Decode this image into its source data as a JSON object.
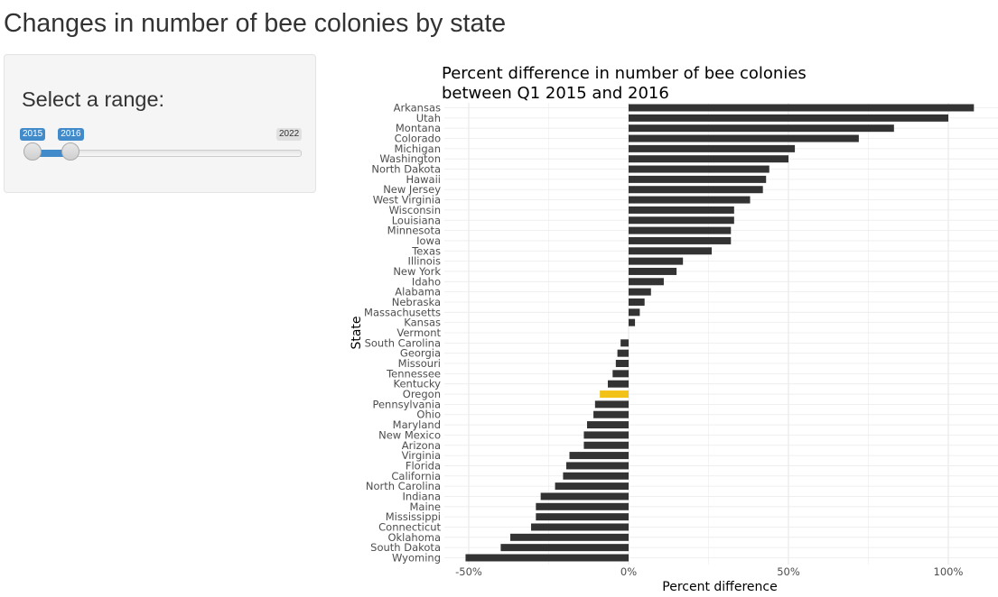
{
  "page": {
    "title": "Changes in number of bee colonies by state"
  },
  "sidebar": {
    "label": "Select a range:",
    "slider": {
      "min": 2015,
      "max": 2022,
      "selected_from": 2015,
      "selected_to": 2016,
      "from_label": "2015",
      "to_label": "2016",
      "max_label": "2022",
      "accent_color": "#428bca"
    }
  },
  "chart_data": {
    "type": "bar",
    "orientation": "horizontal",
    "title_line1": "Percent difference in number of bee colonies",
    "title_line2": "between Q1 2015 and 2016",
    "xlabel": "Percent difference",
    "ylabel": "State",
    "xlim": [
      -50,
      115
    ],
    "x_ticks": [
      -50,
      0,
      50,
      100
    ],
    "x_tick_labels": [
      "-50%",
      "0%",
      "50%",
      "100%"
    ],
    "grid": true,
    "bar_color": "#333333",
    "highlight_color": "#f2c218",
    "highlight_category": "Oregon",
    "categories": [
      "Arkansas",
      "Utah",
      "Montana",
      "Colorado",
      "Michigan",
      "Washington",
      "North Dakota",
      "Hawaii",
      "New Jersey",
      "West Virginia",
      "Wisconsin",
      "Louisiana",
      "Minnesota",
      "Iowa",
      "Texas",
      "Illinois",
      "New York",
      "Idaho",
      "Alabama",
      "Nebraska",
      "Massachusetts",
      "Kansas",
      "Vermont",
      "South Carolina",
      "Georgia",
      "Missouri",
      "Tennessee",
      "Kentucky",
      "Oregon",
      "Pennsylvania",
      "Ohio",
      "Maryland",
      "New Mexico",
      "Arizona",
      "Virginia",
      "Florida",
      "California",
      "North Carolina",
      "Indiana",
      "Maine",
      "Mississippi",
      "Connecticut",
      "Oklahoma",
      "South Dakota",
      "Wyoming"
    ],
    "values": [
      108,
      100,
      83,
      72,
      52,
      50,
      44,
      43,
      42,
      38,
      33,
      33,
      32,
      32,
      26,
      17,
      15,
      11,
      7,
      5,
      3.5,
      2,
      0,
      -2.5,
      -3.5,
      -4,
      -5,
      -6.5,
      -9,
      -10.5,
      -11,
      -13,
      -14,
      -14,
      -18.5,
      -19.5,
      -20.5,
      -23,
      -27.5,
      -29,
      -29,
      -30.5,
      -37,
      -40,
      -51
    ]
  }
}
